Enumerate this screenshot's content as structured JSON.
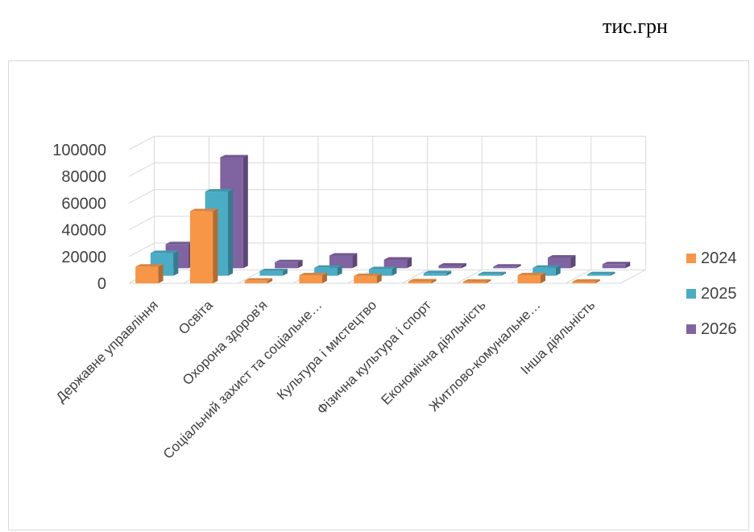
{
  "unit_label": "тис.грн",
  "chart_data": {
    "type": "bar",
    "title": "",
    "xlabel": "",
    "ylabel": "",
    "ylim": [
      0,
      100000
    ],
    "yticks": [
      "0",
      "20000",
      "40000",
      "60000",
      "80000",
      "100000"
    ],
    "categories": [
      "Державне управління",
      "Освіта",
      "Охорона здоров'я",
      "Соціальний захист та соціальне…",
      "Культура і мистецтво",
      "Фізична культура і спорт",
      "Економічна діяльність",
      "Житлово-комунальне…",
      "Інша діяльність"
    ],
    "series": [
      {
        "name": "2024",
        "color": "#f79646",
        "values": [
          12500,
          54000,
          2000,
          6000,
          5500,
          1500,
          500,
          6000,
          500
        ]
      },
      {
        "name": "2025",
        "color": "#4bacc6",
        "values": [
          17000,
          63000,
          3500,
          6000,
          5000,
          2000,
          800,
          6000,
          1000
        ]
      },
      {
        "name": "2026",
        "color": "#8064a2",
        "values": [
          18000,
          83000,
          4500,
          9500,
          6500,
          2000,
          1000,
          8000,
          3000
        ]
      }
    ],
    "legend_position": "right",
    "grid": true
  }
}
